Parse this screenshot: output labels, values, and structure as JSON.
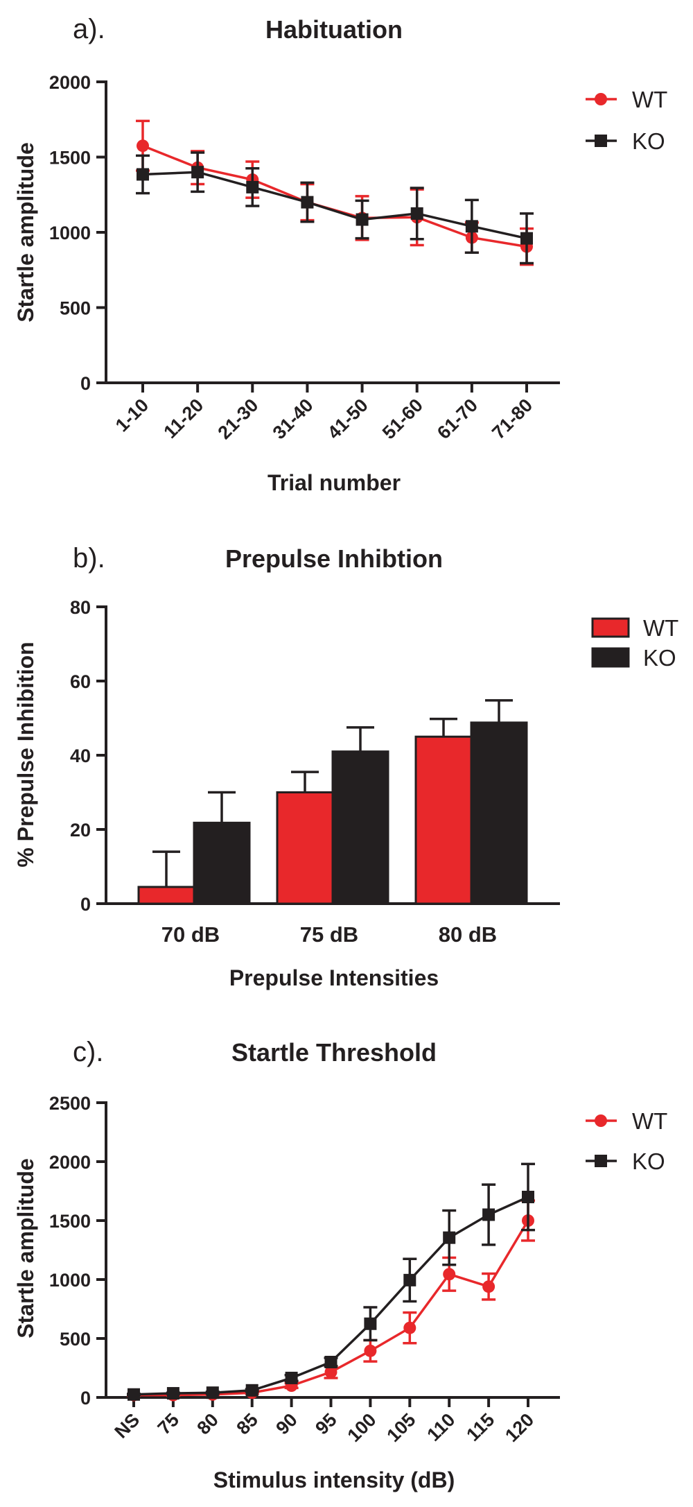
{
  "colors": {
    "wt": "#e8282b",
    "ko": "#231f20",
    "axis": "#231f20"
  },
  "chart_data": [
    {
      "id": "a",
      "type": "line",
      "panel_label": "a).",
      "title": "Habituation",
      "xlabel": "Trial number",
      "ylabel": "Startle amplitude",
      "ylim": [
        0,
        2000
      ],
      "yticks": [
        "0",
        "500",
        "1000",
        "1500",
        "2000"
      ],
      "categories": [
        "1-10",
        "11-20",
        "21-30",
        "31-40",
        "41-50",
        "51-60",
        "61-70",
        "71-80"
      ],
      "legend": "top-right",
      "series": [
        {
          "name": "WT",
          "values": [
            1575,
            1430,
            1350,
            1200,
            1095,
            1100,
            965,
            905
          ],
          "errors": [
            165,
            110,
            120,
            120,
            145,
            185,
            100,
            120
          ]
        },
        {
          "name": "KO",
          "values": [
            1385,
            1400,
            1300,
            1200,
            1085,
            1125,
            1040,
            960
          ],
          "errors": [
            125,
            130,
            125,
            130,
            125,
            170,
            175,
            165
          ]
        }
      ]
    },
    {
      "id": "b",
      "type": "bar",
      "panel_label": "b).",
      "title": "Prepulse Inhibtion",
      "xlabel": "Prepulse Intensities",
      "ylabel": "% Prepulse Inhibition",
      "ylim": [
        0,
        80
      ],
      "yticks": [
        "0",
        "20",
        "40",
        "60",
        "80"
      ],
      "categories": [
        "70 dB",
        "75 dB",
        "80 dB"
      ],
      "legend": "top-right",
      "series": [
        {
          "name": "WT",
          "values": [
            4.5,
            30,
            45
          ],
          "errors": [
            9.5,
            5.5,
            4.8
          ]
        },
        {
          "name": "KO",
          "values": [
            21.8,
            41,
            48.8
          ],
          "errors": [
            8.2,
            6.5,
            6
          ]
        }
      ]
    },
    {
      "id": "c",
      "type": "line",
      "panel_label": "c).",
      "title": "Startle Threshold",
      "xlabel": "Stimulus intensity (dB)",
      "ylabel": "Startle amplitude",
      "ylim": [
        0,
        2500
      ],
      "yticks": [
        "0",
        "500",
        "1000",
        "1500",
        "2000",
        "2500"
      ],
      "categories": [
        "NS",
        "75",
        "80",
        "85",
        "90",
        "95",
        "100",
        "105",
        "110",
        "115",
        "120"
      ],
      "legend": "top-right",
      "series": [
        {
          "name": "WT",
          "values": [
            20,
            20,
            25,
            40,
            100,
            215,
            395,
            590,
            1045,
            940,
            1500
          ],
          "errors": [
            5,
            5,
            5,
            10,
            20,
            50,
            90,
            130,
            140,
            110,
            170
          ]
        },
        {
          "name": "KO",
          "values": [
            25,
            35,
            40,
            60,
            165,
            300,
            625,
            995,
            1355,
            1550,
            1700
          ],
          "errors": [
            5,
            5,
            8,
            10,
            25,
            35,
            140,
            180,
            230,
            255,
            280
          ]
        }
      ]
    }
  ]
}
